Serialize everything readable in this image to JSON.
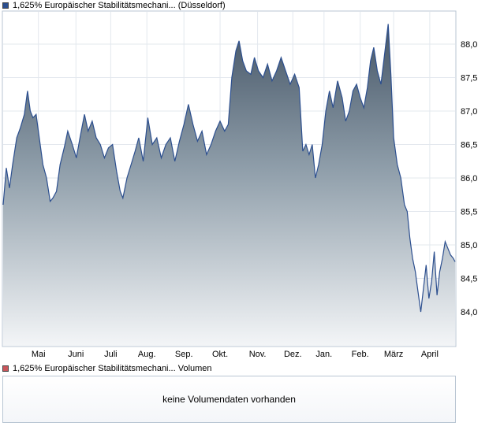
{
  "price_legend": {
    "label": "1,625% Europäischer Stabilitätsmechani... (Düsseldorf)",
    "color": "#2c4f8f"
  },
  "volume_legend": {
    "label": "1,625% Europäischer Stabilitätsmechani... Volumen",
    "color": "#c9565b"
  },
  "volume_panel": {
    "message": "keine Volumendaten vorhanden"
  },
  "chart_data": {
    "type": "area",
    "title": "",
    "xlabel": "",
    "ylabel": "",
    "ylim": [
      83.5,
      88.5
    ],
    "y_ticks": [
      84.0,
      84.5,
      85.0,
      85.5,
      86.0,
      86.5,
      87.0,
      87.5,
      88.0
    ],
    "y_tick_labels": [
      "84,0",
      "84,5",
      "85,0",
      "85,5",
      "86,0",
      "86,5",
      "87,0",
      "87,5",
      "88,0"
    ],
    "x_ticks": [
      {
        "label": "Mai",
        "t": 0.078
      },
      {
        "label": "Juni",
        "t": 0.161
      },
      {
        "label": "Juli",
        "t": 0.238
      },
      {
        "label": "Aug.",
        "t": 0.318
      },
      {
        "label": "Sep.",
        "t": 0.4
      },
      {
        "label": "Okt.",
        "t": 0.48
      },
      {
        "label": "Nov.",
        "t": 0.563
      },
      {
        "label": "Dez.",
        "t": 0.641
      },
      {
        "label": "Jan.",
        "t": 0.71
      },
      {
        "label": "Feb.",
        "t": 0.79
      },
      {
        "label": "März",
        "t": 0.864
      },
      {
        "label": "April",
        "t": 0.944
      }
    ],
    "grid": true,
    "legend_position": "top-left",
    "series": [
      {
        "name": "1,625% Europäischer Stabilitätsmechani... (Düsseldorf)",
        "color": "#2c4f8f",
        "points": [
          [
            0.0,
            85.6
          ],
          [
            0.007,
            86.15
          ],
          [
            0.014,
            85.85
          ],
          [
            0.021,
            86.2
          ],
          [
            0.03,
            86.6
          ],
          [
            0.038,
            86.75
          ],
          [
            0.047,
            86.95
          ],
          [
            0.054,
            87.3
          ],
          [
            0.06,
            87.0
          ],
          [
            0.066,
            86.9
          ],
          [
            0.073,
            86.95
          ],
          [
            0.08,
            86.6
          ],
          [
            0.088,
            86.2
          ],
          [
            0.096,
            86.0
          ],
          [
            0.104,
            85.65
          ],
          [
            0.11,
            85.7
          ],
          [
            0.118,
            85.8
          ],
          [
            0.126,
            86.2
          ],
          [
            0.135,
            86.45
          ],
          [
            0.143,
            86.7
          ],
          [
            0.153,
            86.5
          ],
          [
            0.162,
            86.3
          ],
          [
            0.17,
            86.6
          ],
          [
            0.18,
            86.95
          ],
          [
            0.188,
            86.7
          ],
          [
            0.197,
            86.85
          ],
          [
            0.206,
            86.6
          ],
          [
            0.215,
            86.5
          ],
          [
            0.224,
            86.3
          ],
          [
            0.233,
            86.45
          ],
          [
            0.242,
            86.5
          ],
          [
            0.251,
            86.1
          ],
          [
            0.259,
            85.8
          ],
          [
            0.265,
            85.7
          ],
          [
            0.274,
            86.0
          ],
          [
            0.283,
            86.2
          ],
          [
            0.292,
            86.4
          ],
          [
            0.3,
            86.6
          ],
          [
            0.31,
            86.25
          ],
          [
            0.32,
            86.9
          ],
          [
            0.33,
            86.5
          ],
          [
            0.34,
            86.6
          ],
          [
            0.35,
            86.3
          ],
          [
            0.36,
            86.5
          ],
          [
            0.37,
            86.6
          ],
          [
            0.38,
            86.25
          ],
          [
            0.39,
            86.55
          ],
          [
            0.4,
            86.8
          ],
          [
            0.41,
            87.1
          ],
          [
            0.42,
            86.8
          ],
          [
            0.43,
            86.55
          ],
          [
            0.44,
            86.7
          ],
          [
            0.45,
            86.35
          ],
          [
            0.46,
            86.5
          ],
          [
            0.47,
            86.7
          ],
          [
            0.48,
            86.85
          ],
          [
            0.49,
            86.7
          ],
          [
            0.498,
            86.8
          ],
          [
            0.506,
            87.5
          ],
          [
            0.515,
            87.9
          ],
          [
            0.522,
            88.05
          ],
          [
            0.53,
            87.75
          ],
          [
            0.538,
            87.6
          ],
          [
            0.548,
            87.55
          ],
          [
            0.556,
            87.8
          ],
          [
            0.565,
            87.6
          ],
          [
            0.575,
            87.5
          ],
          [
            0.585,
            87.7
          ],
          [
            0.595,
            87.45
          ],
          [
            0.605,
            87.6
          ],
          [
            0.615,
            87.8
          ],
          [
            0.625,
            87.6
          ],
          [
            0.635,
            87.4
          ],
          [
            0.645,
            87.55
          ],
          [
            0.655,
            87.35
          ],
          [
            0.663,
            86.4
          ],
          [
            0.67,
            86.5
          ],
          [
            0.677,
            86.35
          ],
          [
            0.684,
            86.5
          ],
          [
            0.691,
            86.0
          ],
          [
            0.698,
            86.2
          ],
          [
            0.706,
            86.5
          ],
          [
            0.714,
            87.0
          ],
          [
            0.722,
            87.3
          ],
          [
            0.73,
            87.05
          ],
          [
            0.74,
            87.45
          ],
          [
            0.75,
            87.2
          ],
          [
            0.758,
            86.85
          ],
          [
            0.766,
            87.0
          ],
          [
            0.774,
            87.3
          ],
          [
            0.782,
            87.4
          ],
          [
            0.79,
            87.2
          ],
          [
            0.798,
            87.05
          ],
          [
            0.806,
            87.35
          ],
          [
            0.813,
            87.75
          ],
          [
            0.82,
            87.95
          ],
          [
            0.828,
            87.6
          ],
          [
            0.836,
            87.4
          ],
          [
            0.844,
            87.85
          ],
          [
            0.852,
            88.3
          ],
          [
            0.858,
            87.55
          ],
          [
            0.864,
            86.6
          ],
          [
            0.872,
            86.2
          ],
          [
            0.88,
            86.0
          ],
          [
            0.888,
            85.6
          ],
          [
            0.894,
            85.5
          ],
          [
            0.9,
            85.1
          ],
          [
            0.906,
            84.8
          ],
          [
            0.912,
            84.6
          ],
          [
            0.918,
            84.3
          ],
          [
            0.924,
            84.0
          ],
          [
            0.93,
            84.35
          ],
          [
            0.936,
            84.7
          ],
          [
            0.942,
            84.2
          ],
          [
            0.948,
            84.45
          ],
          [
            0.954,
            84.9
          ],
          [
            0.96,
            84.25
          ],
          [
            0.966,
            84.6
          ],
          [
            0.972,
            84.8
          ],
          [
            0.978,
            85.05
          ],
          [
            0.984,
            84.95
          ],
          [
            0.99,
            84.85
          ],
          [
            0.996,
            84.8
          ],
          [
            1.0,
            84.75
          ]
        ]
      }
    ]
  }
}
